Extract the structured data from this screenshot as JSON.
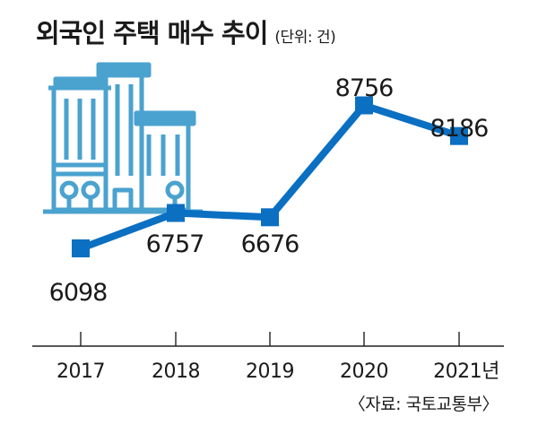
{
  "title": "외국인 주택 매수 추이",
  "unit": "(단위: 건)",
  "source": "〈자료: 국토교통부〉",
  "chart_data": {
    "type": "line",
    "categories": [
      "2017",
      "2018",
      "2019",
      "2020",
      "2021년"
    ],
    "values": [
      6098,
      6757,
      6676,
      8756,
      8186
    ],
    "data_labels": [
      "6098",
      "6757",
      "6676",
      "8756",
      "8186"
    ],
    "title": "외국인 주택 매수 추이",
    "ylabel": "(단위: 건)",
    "xlabel": "",
    "ylim": [
      5500,
      9600
    ],
    "grid": false,
    "legend": "none"
  },
  "colors": {
    "line": "#0b6fc2",
    "marker": "#0b6fc2",
    "illustration": "#4aa2cf",
    "axis": "#222222",
    "text": "#1a1a1a"
  },
  "illustration": "buildings-icon"
}
